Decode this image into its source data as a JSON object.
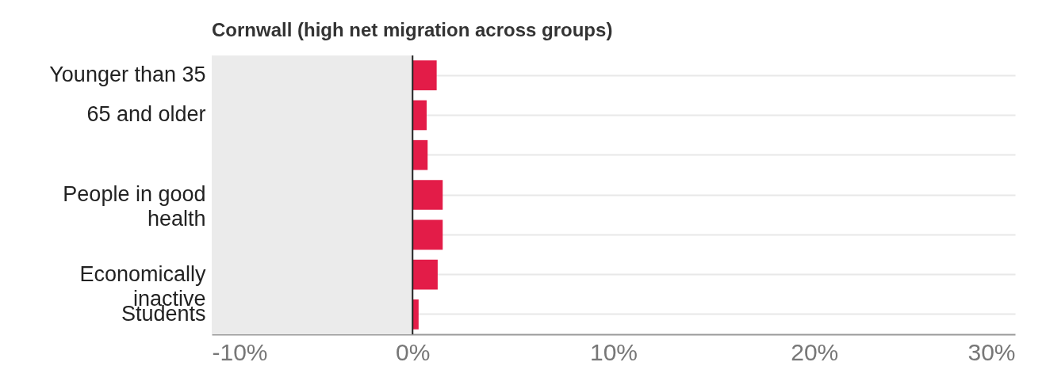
{
  "chart_data": {
    "type": "bar",
    "orientation": "horizontal",
    "title": "Cornwall (high net migration across groups)",
    "categories": [
      "Younger than 35",
      "65 and older",
      null,
      "People in good health",
      null,
      "Economically inactive",
      "Students"
    ],
    "values": [
      1.2,
      0.7,
      0.75,
      1.5,
      1.5,
      1.25,
      0.3
    ],
    "color": "#e31c48",
    "xlim": [
      -10,
      30
    ],
    "xticks": [
      {
        "value": -10,
        "label": "-10%"
      },
      {
        "value": 0,
        "label": "0%"
      },
      {
        "value": 10,
        "label": "10%"
      },
      {
        "value": 20,
        "label": "20%"
      },
      {
        "value": 30,
        "label": "30%"
      }
    ],
    "bands": [
      {
        "axis": "x",
        "from": -10,
        "to": 0,
        "color": "#ebebeb"
      }
    ],
    "ref_lines": [
      {
        "axis": "x",
        "value": 0,
        "color": "#222222"
      }
    ],
    "grid": "y"
  }
}
